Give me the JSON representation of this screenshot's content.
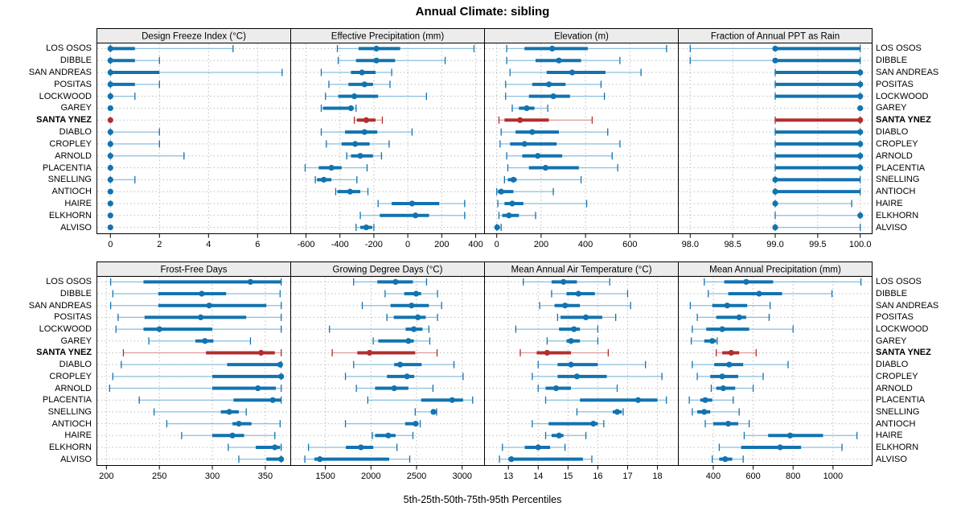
{
  "title": "Annual Climate: sibling",
  "caption": "5th-25th-50th-75th-95th Percentiles",
  "highlight_site": "SANTA YNEZ",
  "colors": {
    "normal": "#1273b0",
    "normal_light": "#8bbfdc",
    "highlight": "#b22f2f",
    "highlight_light": "#dc9b9b",
    "strip_bg": "#ececec",
    "panel_border": "#000000",
    "grid": "#bdbdbd"
  },
  "sites": [
    "LOS OSOS",
    "DIBBLE",
    "SAN ANDREAS",
    "POSITAS",
    "LOCKWOOD",
    "GAREY",
    "SANTA YNEZ",
    "DIABLO",
    "CROPLEY",
    "ARNOLD",
    "PLACENTIA",
    "SNELLING",
    "ANTIOCH",
    "HAIRE",
    "ELKHORN",
    "ALVISO"
  ],
  "chart_data": {
    "type": "dotplot-percentiles",
    "percentiles": [
      "5th",
      "25th",
      "50th",
      "75th",
      "95th"
    ],
    "grid": "dotted",
    "panels": [
      {
        "title": "Design Freeze Index (°C)",
        "row": 0,
        "col": 0,
        "xlim": [
          -0.55,
          7.35
        ],
        "ticks": [
          0,
          2,
          4,
          6
        ],
        "tick_decimals": 0,
        "values": [
          [
            0,
            0,
            0,
            1,
            5
          ],
          [
            0,
            0,
            0,
            1,
            2
          ],
          [
            0,
            0,
            0,
            2,
            7
          ],
          [
            0,
            0,
            0,
            1,
            2
          ],
          [
            0,
            0,
            0,
            0.1,
            1
          ],
          [
            0,
            0,
            0,
            0,
            0
          ],
          [
            0,
            0,
            0,
            0,
            0
          ],
          [
            0,
            0,
            0,
            0,
            2
          ],
          [
            0,
            0,
            0,
            0,
            2
          ],
          [
            0,
            0,
            0,
            0,
            3
          ],
          [
            0,
            0,
            0,
            0,
            0
          ],
          [
            0,
            0,
            0,
            0,
            1
          ],
          [
            0,
            0,
            0,
            0,
            0
          ],
          [
            0,
            0,
            0,
            0,
            0
          ],
          [
            0,
            0,
            0,
            0,
            0
          ],
          [
            0,
            0,
            0,
            0,
            0
          ]
        ]
      },
      {
        "title": "Effective Precipitation (mm)",
        "row": 0,
        "col": 1,
        "xlim": [
          -690,
          452
        ],
        "ticks": [
          -600,
          -400,
          -200,
          0,
          200,
          400
        ],
        "tick_decimals": 0,
        "values": [
          [
            -415,
            -290,
            -185,
            -45,
            390
          ],
          [
            -410,
            -305,
            -185,
            -75,
            220
          ],
          [
            -510,
            -335,
            -270,
            -190,
            -95
          ],
          [
            -465,
            -350,
            -255,
            -205,
            -105
          ],
          [
            -485,
            -410,
            -315,
            -175,
            110
          ],
          [
            -510,
            -500,
            -335,
            -325,
            -305
          ],
          [
            -315,
            -300,
            -245,
            -190,
            -150
          ],
          [
            -510,
            -370,
            -255,
            -180,
            25
          ],
          [
            -480,
            -390,
            -310,
            -225,
            -110
          ],
          [
            -360,
            -335,
            -280,
            -205,
            -155
          ],
          [
            -605,
            -525,
            -450,
            -390,
            -240
          ],
          [
            -545,
            -535,
            -495,
            -450,
            -300
          ],
          [
            -425,
            -415,
            -340,
            -280,
            -235
          ],
          [
            -175,
            -95,
            25,
            185,
            335
          ],
          [
            -280,
            -165,
            45,
            125,
            335
          ],
          [
            -305,
            -280,
            -245,
            -210,
            -200
          ]
        ]
      },
      {
        "title": "Elevation (m)",
        "row": 0,
        "col": 2,
        "xlim": [
          -55,
          818
        ],
        "ticks": [
          0,
          200,
          400,
          600
        ],
        "tick_decimals": 0,
        "values": [
          [
            45,
            125,
            250,
            410,
            765
          ],
          [
            45,
            175,
            280,
            380,
            555
          ],
          [
            60,
            225,
            340,
            490,
            650
          ],
          [
            40,
            160,
            235,
            310,
            470
          ],
          [
            40,
            145,
            255,
            330,
            485
          ],
          [
            70,
            100,
            135,
            170,
            230
          ],
          [
            10,
            35,
            105,
            235,
            430
          ],
          [
            20,
            85,
            160,
            280,
            500
          ],
          [
            15,
            60,
            125,
            270,
            555
          ],
          [
            45,
            115,
            185,
            295,
            520
          ],
          [
            50,
            145,
            220,
            370,
            545
          ],
          [
            35,
            50,
            75,
            90,
            380
          ],
          [
            0,
            5,
            20,
            75,
            255
          ],
          [
            5,
            35,
            70,
            120,
            405
          ],
          [
            10,
            25,
            55,
            100,
            175
          ],
          [
            0,
            0,
            2,
            13,
            20
          ]
        ]
      },
      {
        "title": "Fraction of Annual PPT as Rain",
        "row": 0,
        "col": 3,
        "xlim": [
          97.86,
          100.14
        ],
        "ticks": [
          98.0,
          98.5,
          99.0,
          99.5,
          100.0
        ],
        "tick_decimals": 1,
        "values": [
          [
            98,
            99,
            99,
            100,
            100
          ],
          [
            98,
            99,
            99,
            100,
            100
          ],
          [
            99,
            99,
            100,
            100,
            100
          ],
          [
            99,
            99,
            100,
            100,
            100
          ],
          [
            99,
            99,
            100,
            100,
            100
          ],
          [
            100,
            100,
            100,
            100,
            100
          ],
          [
            99,
            99,
            100,
            100,
            100
          ],
          [
            99,
            99,
            100,
            100,
            100
          ],
          [
            99,
            99,
            100,
            100,
            100
          ],
          [
            99,
            99,
            100,
            100,
            100
          ],
          [
            99,
            99,
            100,
            100,
            100
          ],
          [
            99,
            99,
            99,
            100,
            100
          ],
          [
            99,
            99,
            99,
            100,
            100
          ],
          [
            99,
            99,
            99,
            99,
            99.9
          ],
          [
            99,
            100,
            100,
            100,
            100
          ],
          [
            99,
            99,
            99,
            99,
            100
          ]
        ]
      },
      {
        "title": "Frost-Free Days",
        "row": 1,
        "col": 0,
        "xlim": [
          191,
          374
        ],
        "ticks": [
          200,
          250,
          300,
          350
        ],
        "tick_decimals": 0,
        "values": [
          [
            204,
            235,
            336,
            365,
            365
          ],
          [
            206,
            249,
            290,
            313,
            364
          ],
          [
            204,
            249,
            297,
            351,
            365
          ],
          [
            211,
            236,
            289,
            332,
            365
          ],
          [
            209,
            235,
            250,
            300,
            365
          ],
          [
            240,
            284,
            293,
            301,
            336
          ],
          [
            216,
            294,
            346,
            359,
            365
          ],
          [
            214,
            314,
            364,
            365,
            365
          ],
          [
            206,
            300,
            365,
            365,
            365
          ],
          [
            203,
            300,
            343,
            360,
            365
          ],
          [
            231,
            320,
            357,
            365,
            365
          ],
          [
            245,
            308,
            316,
            325,
            332
          ],
          [
            257,
            319,
            325,
            337,
            364
          ],
          [
            271,
            300,
            319,
            330,
            359
          ],
          [
            315,
            341,
            359,
            364,
            365
          ],
          [
            325,
            351,
            365,
            365,
            365
          ]
        ]
      },
      {
        "title": "Growing Degree Days (°C)",
        "row": 1,
        "col": 1,
        "xlim": [
          1120,
          3245
        ],
        "ticks": [
          1500,
          2000,
          2500,
          3000
        ],
        "tick_decimals": 0,
        "values": [
          [
            1810,
            2070,
            2270,
            2460,
            2610
          ],
          [
            2155,
            2365,
            2495,
            2550,
            2730
          ],
          [
            1905,
            2215,
            2445,
            2635,
            2775
          ],
          [
            2175,
            2250,
            2515,
            2600,
            2730
          ],
          [
            1545,
            2380,
            2470,
            2565,
            2635
          ],
          [
            2025,
            2080,
            2410,
            2470,
            2645
          ],
          [
            1575,
            1850,
            1985,
            2485,
            2725
          ],
          [
            1810,
            2255,
            2320,
            2555,
            2910
          ],
          [
            1720,
            2175,
            2395,
            2475,
            3010
          ],
          [
            1840,
            2045,
            2255,
            2410,
            2680
          ],
          [
            1965,
            2550,
            2890,
            3010,
            3115
          ],
          [
            2485,
            2660,
            2685,
            2715,
            2720
          ],
          [
            1720,
            2375,
            2490,
            2520,
            2540
          ],
          [
            2015,
            2045,
            2190,
            2270,
            2460
          ],
          [
            1315,
            1725,
            1890,
            2025,
            2285
          ],
          [
            1275,
            1380,
            1440,
            2200,
            2425
          ]
        ]
      },
      {
        "title": "Mean Annual Air Temperature (°C)",
        "row": 1,
        "col": 2,
        "xlim": [
          12.2,
          18.7
        ],
        "ticks": [
          13,
          14,
          15,
          16,
          17,
          18
        ],
        "tick_decimals": 0,
        "values": [
          [
            13.5,
            14.45,
            14.85,
            15.3,
            16.4
          ],
          [
            14.45,
            14.95,
            15.35,
            15.9,
            17.0
          ],
          [
            14.05,
            14.55,
            14.9,
            15.4,
            17.1
          ],
          [
            14.65,
            14.75,
            15.6,
            16.15,
            16.6
          ],
          [
            13.25,
            14.7,
            15.2,
            15.4,
            16.0
          ],
          [
            14.3,
            14.95,
            15.1,
            15.4,
            16.0
          ],
          [
            13.4,
            13.95,
            14.3,
            15.1,
            16.35
          ],
          [
            14.0,
            14.65,
            15.1,
            16.0,
            17.6
          ],
          [
            13.8,
            14.65,
            15.3,
            16.3,
            18.15
          ],
          [
            14.0,
            14.25,
            14.6,
            15.1,
            16.65
          ],
          [
            14.25,
            15.4,
            17.35,
            18.0,
            18.3
          ],
          [
            15.3,
            16.5,
            16.65,
            16.8,
            16.85
          ],
          [
            13.8,
            14.35,
            15.85,
            16.0,
            16.2
          ],
          [
            14.25,
            14.45,
            14.7,
            14.85,
            15.6
          ],
          [
            12.8,
            13.55,
            14.0,
            14.4,
            14.9
          ],
          [
            12.7,
            13.0,
            13.1,
            15.5,
            15.8
          ]
        ]
      },
      {
        "title": "Mean Annual Precipitation (mm)",
        "row": 1,
        "col": 3,
        "xlim": [
          225,
          1196
        ],
        "ticks": [
          400,
          600,
          800,
          1000
        ],
        "tick_decimals": 0,
        "values": [
          [
            355,
            455,
            565,
            700,
            1140
          ],
          [
            375,
            475,
            630,
            745,
            995
          ],
          [
            285,
            395,
            470,
            570,
            685
          ],
          [
            320,
            415,
            530,
            565,
            680
          ],
          [
            295,
            365,
            445,
            580,
            800
          ],
          [
            290,
            355,
            395,
            415,
            420
          ],
          [
            415,
            445,
            490,
            530,
            615
          ],
          [
            295,
            405,
            480,
            550,
            775
          ],
          [
            320,
            385,
            445,
            525,
            650
          ],
          [
            390,
            415,
            450,
            510,
            600
          ],
          [
            280,
            335,
            360,
            395,
            500
          ],
          [
            295,
            320,
            355,
            385,
            530
          ],
          [
            360,
            400,
            475,
            525,
            580
          ],
          [
            555,
            675,
            785,
            950,
            1120
          ],
          [
            430,
            540,
            735,
            840,
            1045
          ],
          [
            395,
            430,
            460,
            495,
            550
          ]
        ]
      }
    ]
  }
}
